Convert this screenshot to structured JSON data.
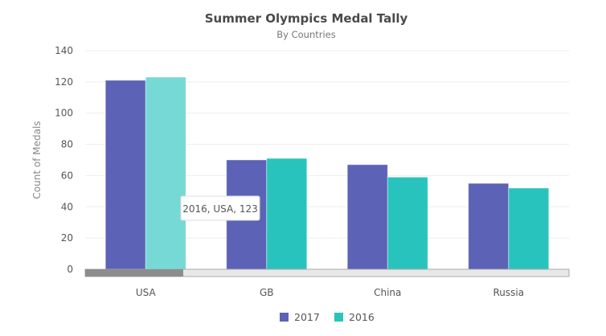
{
  "chart_data": {
    "type": "bar",
    "title": "Summer Olympics Medal Tally",
    "subtitle": "By Countries",
    "xlabel": "",
    "ylabel": "Count of Medals",
    "ylim": [
      0,
      140
    ],
    "yticks": [
      0,
      20,
      40,
      60,
      80,
      100,
      120,
      140
    ],
    "grid": true,
    "legend_position": "bottom",
    "categories": [
      "USA",
      "GB",
      "China",
      "Russia"
    ],
    "series": [
      {
        "name": "2017",
        "color": "#5c62b5",
        "values": [
          121,
          70,
          67,
          55
        ]
      },
      {
        "name": "2016",
        "color": "#29c3be",
        "values": [
          123,
          71,
          59,
          52
        ]
      }
    ],
    "tooltip": "2016, USA, 123",
    "hover_color": "#76d9d5"
  }
}
